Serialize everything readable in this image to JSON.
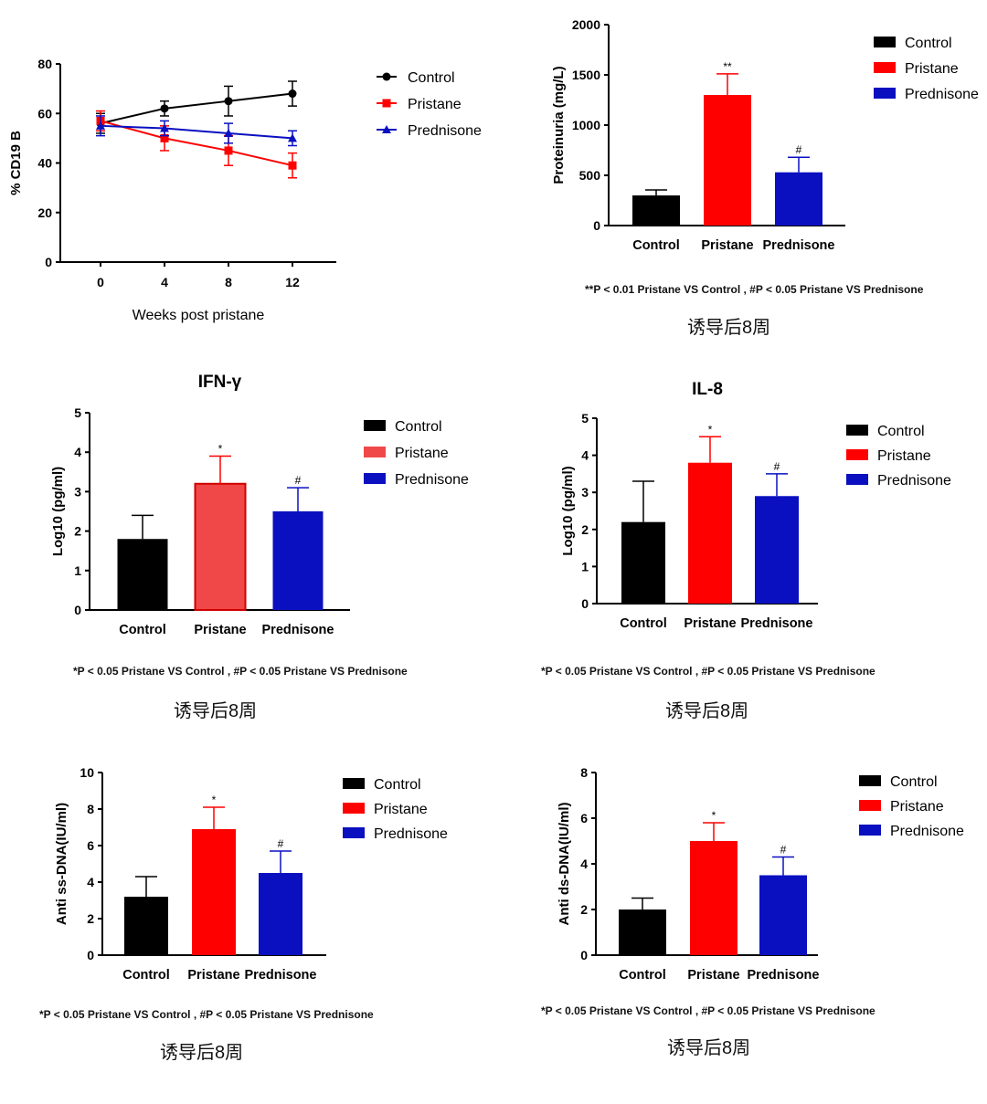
{
  "colors": {
    "control": "#000000",
    "pristane": "#ff0000",
    "pristane_light": "#f04848",
    "prednisone": "#0a10c0"
  },
  "chart_data": [
    {
      "id": "cd19",
      "type": "line",
      "title": "",
      "xlabel": "Weeks post pristane",
      "ylabel": "% CD19 B",
      "x": [
        0,
        4,
        8,
        12
      ],
      "xticks": [
        "0",
        "4",
        "8",
        "12"
      ],
      "ylim": [
        0,
        80
      ],
      "yticks": [
        "0",
        "20",
        "40",
        "60",
        "80"
      ],
      "legend": "right",
      "series": [
        {
          "name": "Control",
          "marker": "circle",
          "values": [
            56,
            62,
            65,
            68
          ],
          "err": [
            4,
            3,
            6,
            5
          ]
        },
        {
          "name": "Pristane",
          "marker": "square",
          "values": [
            57,
            50,
            45,
            39
          ],
          "err": [
            4,
            5,
            6,
            5
          ]
        },
        {
          "name": "Prednisone",
          "marker": "triangle",
          "values": [
            55,
            54,
            52,
            50
          ],
          "err": [
            4,
            3,
            4,
            3
          ]
        }
      ]
    },
    {
      "id": "proteinuria",
      "type": "bar",
      "title": "",
      "xlabel": "",
      "ylabel": "Proteinuria (mg/L)",
      "categories": [
        "Control",
        "Pristane",
        "Prednisone"
      ],
      "values": [
        300,
        1300,
        530
      ],
      "err": [
        55,
        210,
        150
      ],
      "sig": [
        "",
        "**",
        "#"
      ],
      "ylim": [
        0,
        2000
      ],
      "yticks": [
        "0",
        "500",
        "1000",
        "1500",
        "2000"
      ],
      "legend": "top-right",
      "note": "**P < 0.01 Pristane VS Control , #P < 0.05 Pristane VS Prednisone",
      "period": "诱导后8周"
    },
    {
      "id": "ifn",
      "type": "bar",
      "title": "IFN-γ",
      "xlabel": "",
      "ylabel": "Log10 (pg/ml)",
      "categories": [
        "Control",
        "Pristane",
        "Prednisone"
      ],
      "values": [
        1.8,
        3.2,
        2.5
      ],
      "err": [
        0.6,
        0.7,
        0.6
      ],
      "sig": [
        "",
        "*",
        "#"
      ],
      "ylim": [
        0,
        5
      ],
      "yticks": [
        "0",
        "1",
        "2",
        "3",
        "4",
        "5"
      ],
      "legend": "right",
      "note": "*P < 0.05 Pristane VS Control , #P < 0.05 Pristane VS Prednisone",
      "period": "诱导后8周"
    },
    {
      "id": "il8",
      "type": "bar",
      "title": "IL-8",
      "xlabel": "",
      "ylabel": "Log10 (pg/ml)",
      "categories": [
        "Control",
        "Pristane",
        "Prednisone"
      ],
      "values": [
        2.2,
        3.8,
        2.9
      ],
      "err": [
        1.1,
        0.7,
        0.6
      ],
      "sig": [
        "",
        "*",
        "#"
      ],
      "ylim": [
        0,
        5
      ],
      "yticks": [
        "0",
        "1",
        "2",
        "3",
        "4",
        "5"
      ],
      "legend": "right",
      "note": "*P < 0.05 Pristane VS Control , #P < 0.05 Pristane VS Prednisone",
      "period": "诱导后8周"
    },
    {
      "id": "ssdna",
      "type": "bar",
      "title": "",
      "xlabel": "",
      "ylabel": "Anti ss-DNA(IU/ml)",
      "categories": [
        "Control",
        "Pristane",
        "Prednisone"
      ],
      "values": [
        3.2,
        6.9,
        4.5
      ],
      "err": [
        1.1,
        1.2,
        1.2
      ],
      "sig": [
        "",
        "*",
        "#"
      ],
      "ylim": [
        0,
        10
      ],
      "yticks": [
        "0",
        "2",
        "4",
        "6",
        "8",
        "10"
      ],
      "legend": "right",
      "note": "*P < 0.05 Pristane VS Control , #P < 0.05 Pristane VS Prednisone",
      "period": "诱导后8周"
    },
    {
      "id": "dsdna",
      "type": "bar",
      "title": "",
      "xlabel": "",
      "ylabel": "Anti ds-DNA(IU/ml)",
      "categories": [
        "Control",
        "Pristane",
        "Prednisone"
      ],
      "values": [
        2.0,
        5.0,
        3.5
      ],
      "err": [
        0.5,
        0.8,
        0.8
      ],
      "sig": [
        "",
        "*",
        "#"
      ],
      "ylim": [
        0,
        8
      ],
      "yticks": [
        "0",
        "2",
        "4",
        "6",
        "8"
      ],
      "legend": "top-right",
      "note": "*P < 0.05 Pristane VS Control , #P < 0.05 Pristane VS Prednisone",
      "period": "诱导后8周"
    }
  ]
}
